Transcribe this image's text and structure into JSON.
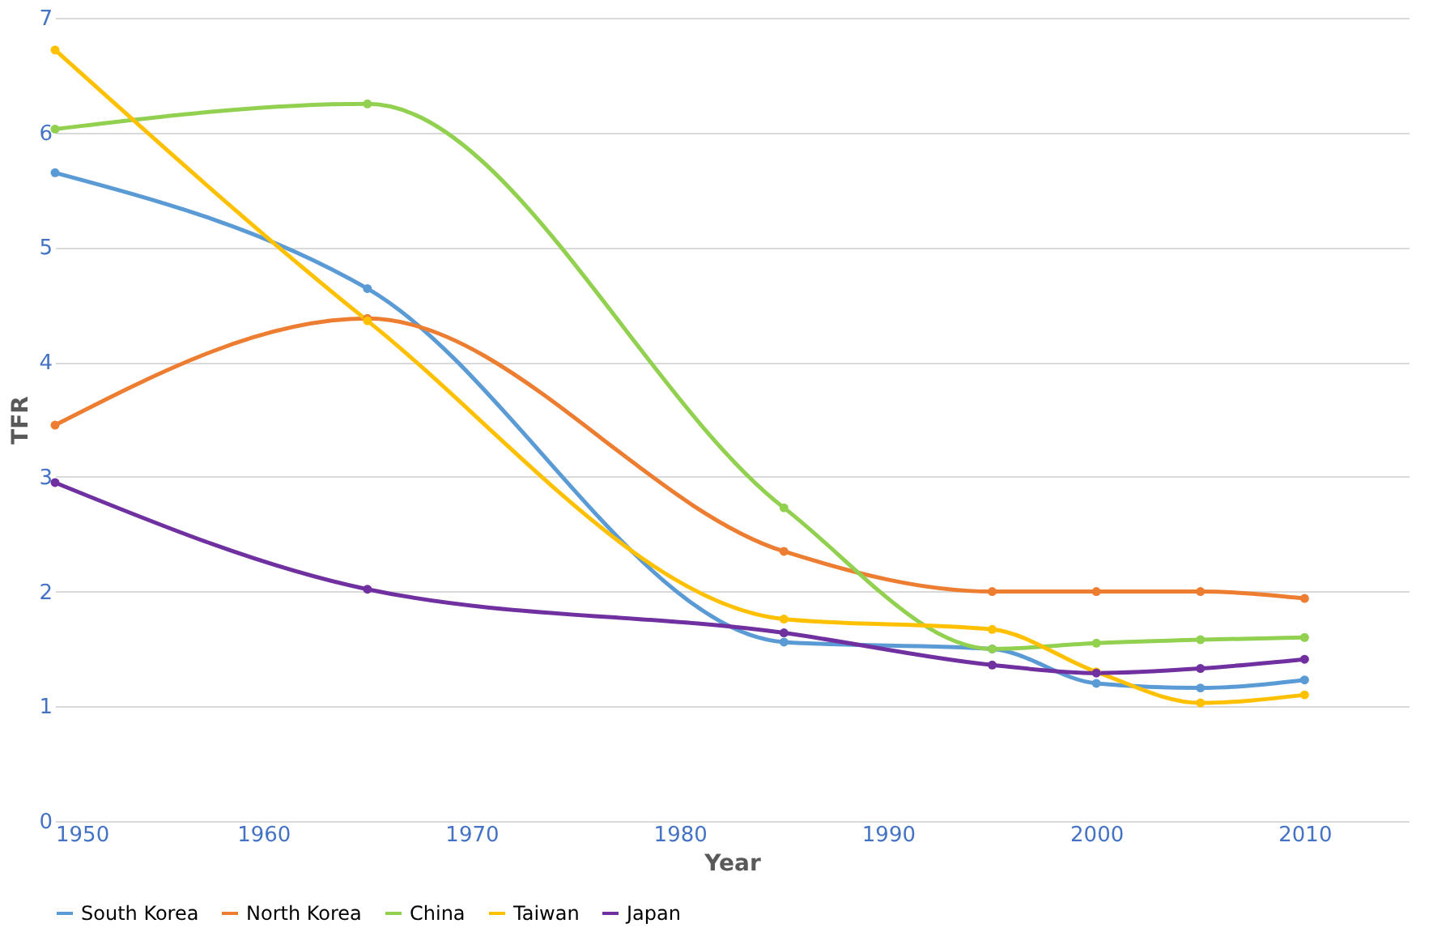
{
  "chart_data": {
    "type": "line",
    "xlabel": "Year",
    "ylabel": "TFR",
    "x": [
      1950,
      1965,
      1985,
      1995,
      2000,
      2005,
      2010
    ],
    "series": [
      {
        "name": "South Korea",
        "color": "#5b9bd5",
        "values": [
          5.65,
          4.64,
          1.56,
          1.5,
          1.2,
          1.16,
          1.23
        ]
      },
      {
        "name": "North Korea",
        "color": "#ed7d31",
        "values": [
          3.45,
          4.38,
          2.35,
          2.0,
          2.0,
          2.0,
          1.94
        ]
      },
      {
        "name": "China",
        "color": "#92d050",
        "values": [
          6.03,
          6.25,
          2.73,
          1.5,
          1.55,
          1.58,
          1.6
        ]
      },
      {
        "name": "Taiwan",
        "color": "#ffc000",
        "values": [
          6.72,
          4.36,
          1.76,
          1.67,
          1.3,
          1.03,
          1.1
        ]
      },
      {
        "name": "Japan",
        "color": "#7030a0",
        "values": [
          2.95,
          2.02,
          1.64,
          1.36,
          1.29,
          1.33,
          1.41
        ]
      }
    ],
    "xlim": [
      1950,
      2015
    ],
    "xticks": [
      1950,
      1960,
      1970,
      1980,
      1990,
      2000,
      2010
    ],
    "ylim": [
      0,
      7
    ],
    "yticks": [
      0,
      1,
      2,
      3,
      4,
      5,
      6,
      7
    ],
    "grid": "y",
    "legend": "bottom",
    "marker": "circle",
    "line_style": "solid"
  }
}
